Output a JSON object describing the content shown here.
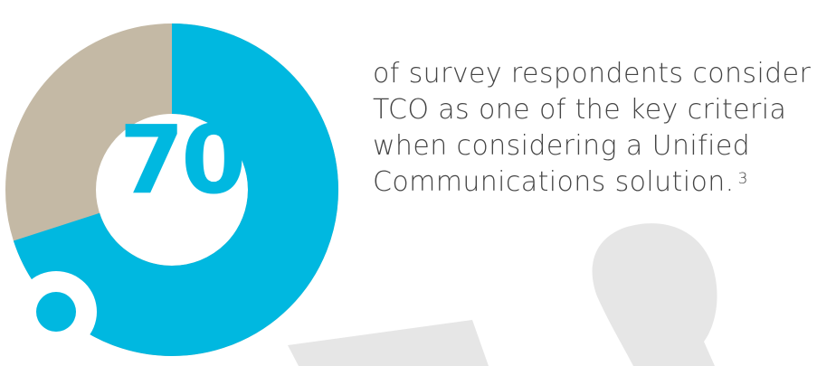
{
  "stat": {
    "value": 70,
    "number_text": "70",
    "percent_text": "%",
    "filled_fraction": 0.7
  },
  "caption": {
    "lines": [
      "of survey respondents consider",
      "TCO as one of the key criteria",
      "when considering a Unified",
      "Communications solution."
    ],
    "footnote": "3"
  },
  "colors": {
    "accent": "#00b8e0",
    "remainder": "#c4b9a5",
    "silhouette": "#e6e6e6",
    "text": "#444444",
    "background": "#ffffff"
  }
}
